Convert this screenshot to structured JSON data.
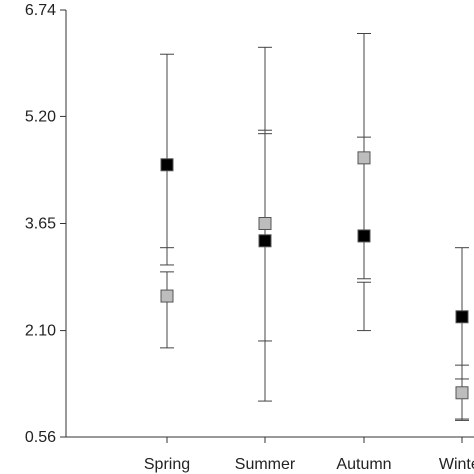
{
  "chart_data": {
    "type": "scatter",
    "title": "",
    "xlabel": "",
    "ylabel": "",
    "categories": [
      "Spring",
      "Summer",
      "Autumn",
      "Winter"
    ],
    "yticks": [
      "0.56",
      "2.10",
      "3.65",
      "5.20",
      "6.74"
    ],
    "ylim": [
      0.56,
      6.74
    ],
    "grid": false,
    "series": [
      {
        "marker": "square",
        "color": "#000000",
        "values": [
          4.5,
          3.4,
          3.47,
          2.3
        ],
        "error_low": [
          3.05,
          1.08,
          2.85,
          0.82
        ],
        "error_high": [
          6.1,
          6.2,
          6.4,
          3.3
        ],
        "minor_ticks": [
          3.3,
          5.0,
          4.9,
          1.6
        ]
      },
      {
        "marker": "square",
        "color": "#bdbdbd",
        "values": [
          2.6,
          3.65,
          4.6,
          1.2
        ],
        "error_low": [
          1.85,
          1.95,
          2.1,
          0.8
        ],
        "error_high": [
          2.95,
          4.95,
          2.8,
          1.4
        ],
        "minor_ticks": []
      }
    ]
  }
}
